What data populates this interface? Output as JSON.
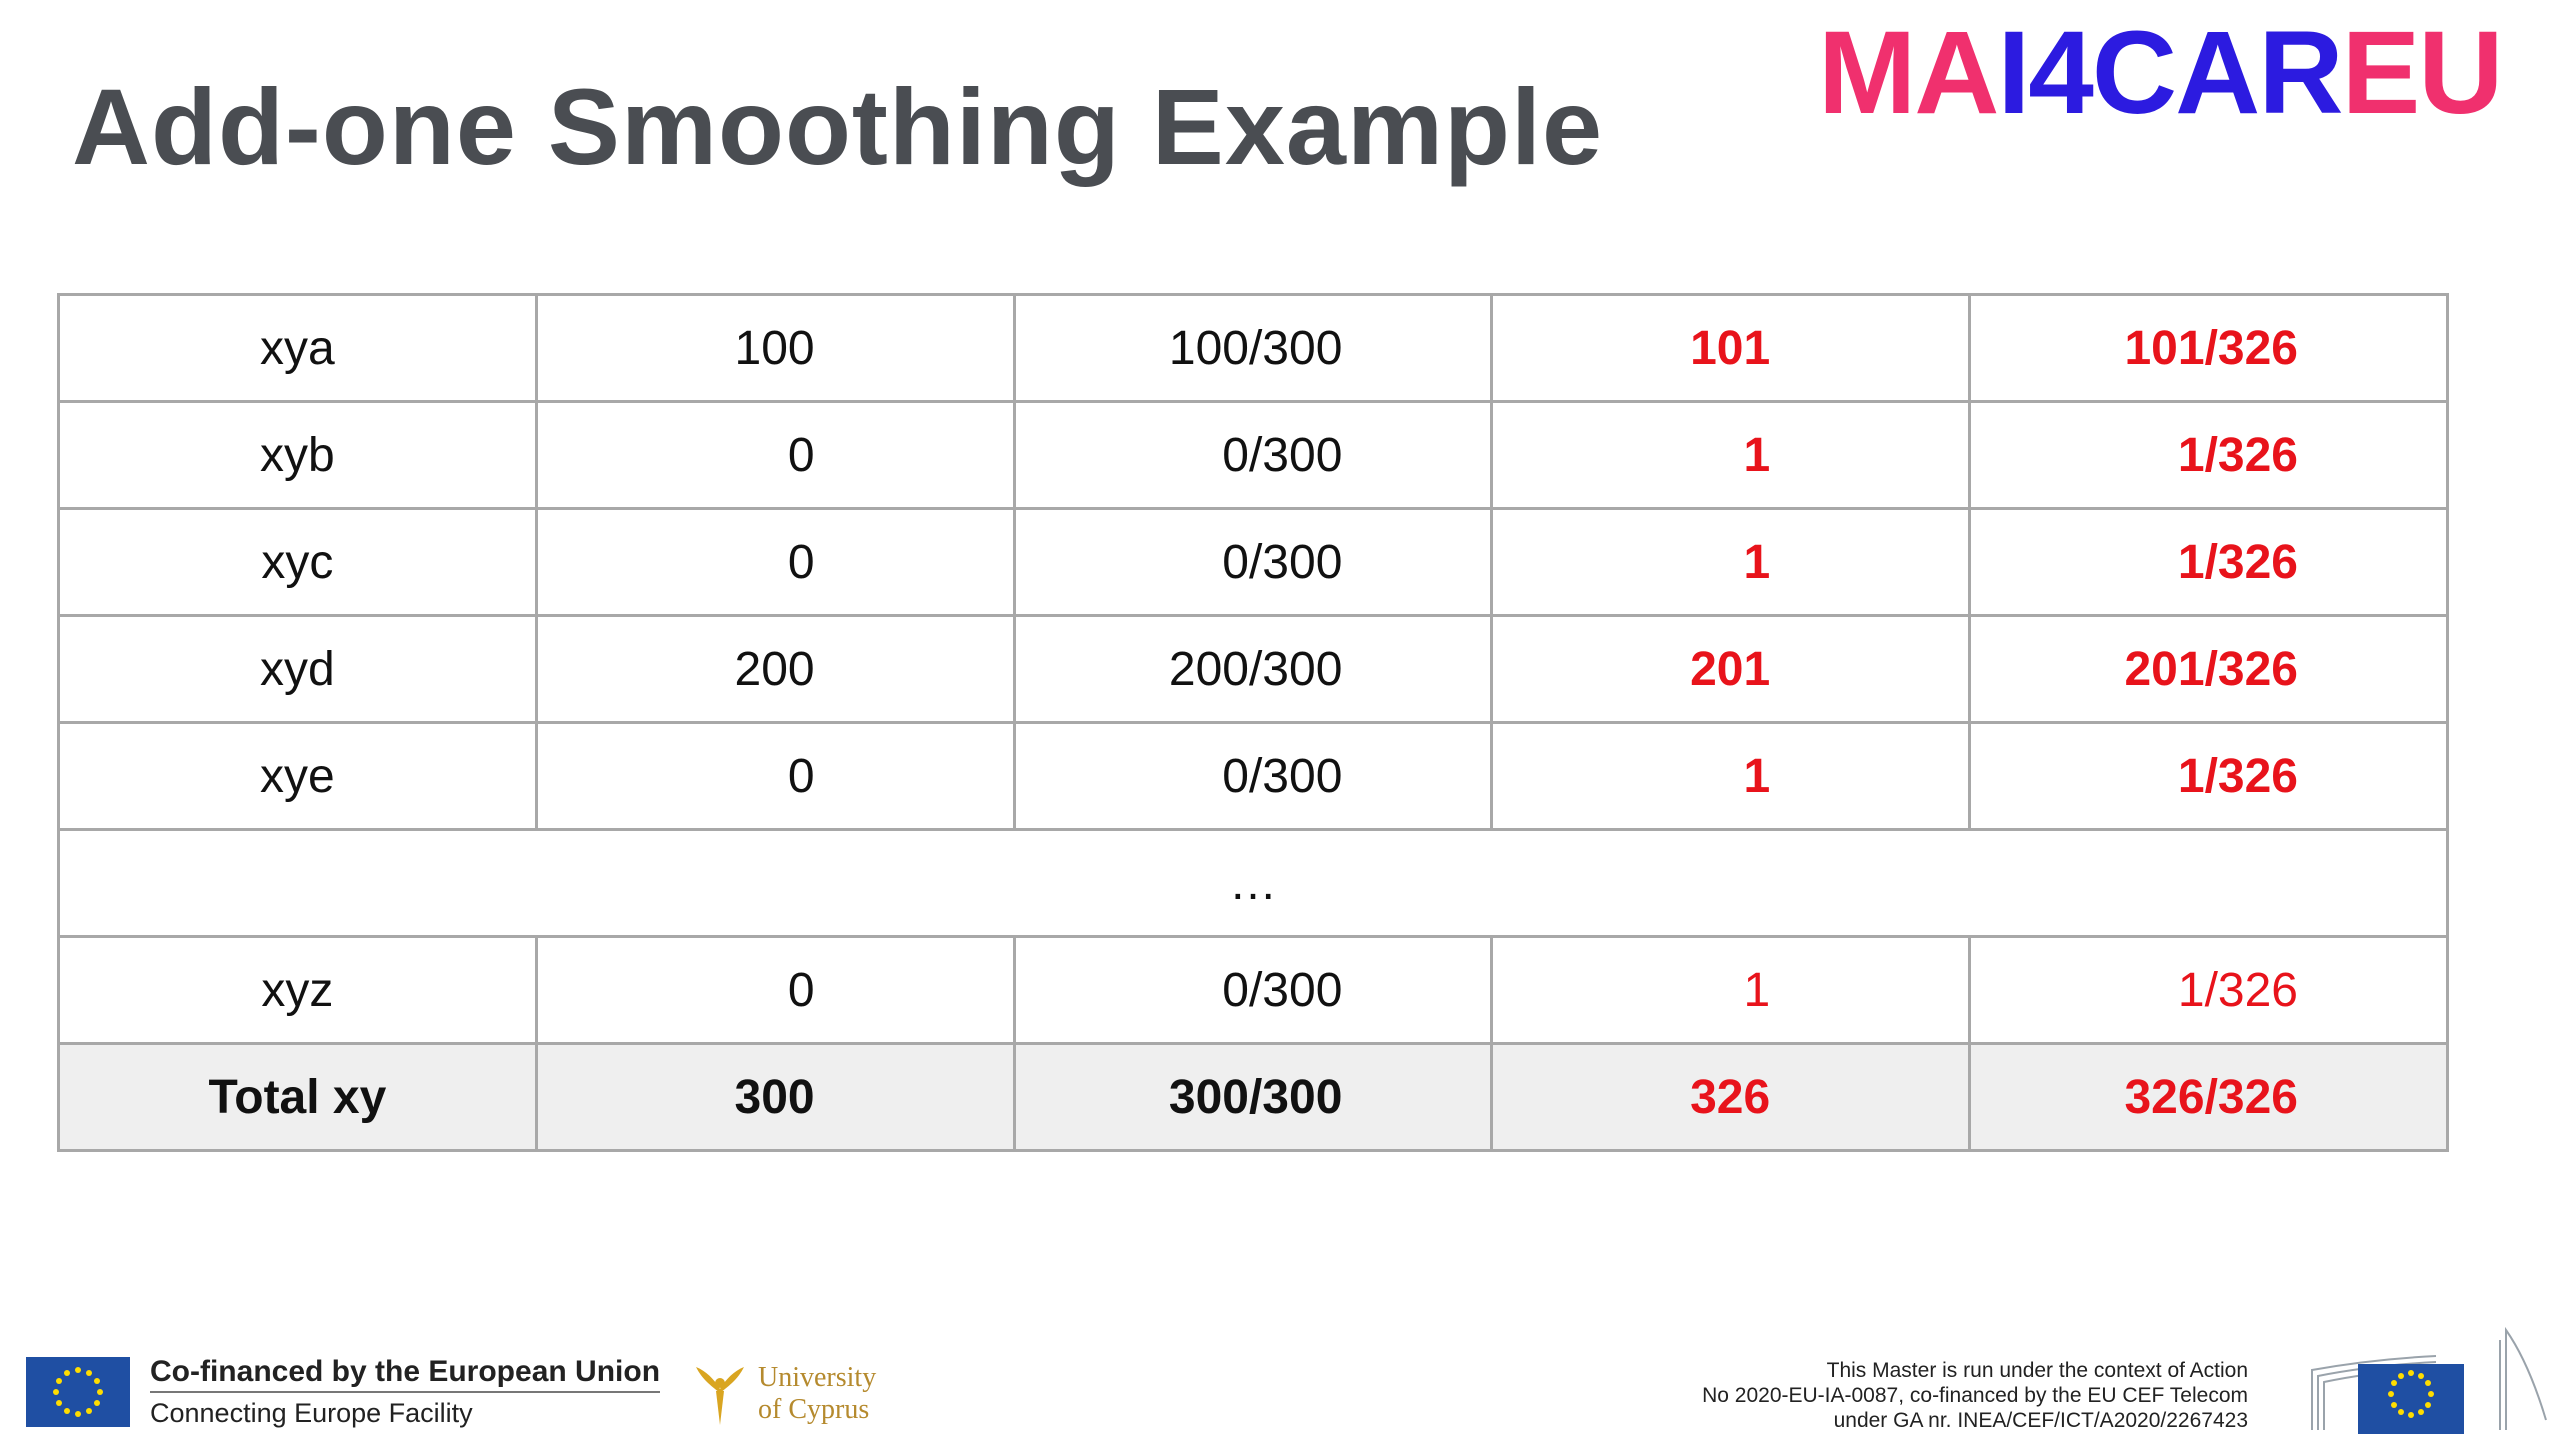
{
  "title": "Add-one Smoothing Example",
  "logo": {
    "part1": "MA",
    "part2": "I4CAR",
    "part3": "EU"
  },
  "table": {
    "rows": [
      {
        "label": "xya",
        "count": "100",
        "prob": "100/300",
        "add_count": "101",
        "add_prob": "101/326",
        "emph": true
      },
      {
        "label": "xyb",
        "count": "0",
        "prob": "0/300",
        "add_count": "1",
        "add_prob": "1/326",
        "emph": true
      },
      {
        "label": "xyc",
        "count": "0",
        "prob": "0/300",
        "add_count": "1",
        "add_prob": "1/326",
        "emph": true
      },
      {
        "label": "xyd",
        "count": "200",
        "prob": "200/300",
        "add_count": "201",
        "add_prob": "201/326",
        "emph": true
      },
      {
        "label": "xye",
        "count": "0",
        "prob": "0/300",
        "add_count": "1",
        "add_prob": "1/326",
        "emph": true
      }
    ],
    "ellipsis": "…",
    "last_row": {
      "label": "xyz",
      "count": "0",
      "prob": "0/300",
      "add_count": "1",
      "add_prob": "1/326"
    },
    "total": {
      "label": "Total xy",
      "count": "300",
      "prob": "300/300",
      "add_count": "326",
      "add_prob": "326/326"
    }
  },
  "footer": {
    "cofinanced": "Co-financed by the European Union",
    "facility": "Connecting Europe Facility",
    "university_line1": "University",
    "university_line2": "of Cyprus",
    "action_line1": "This Master is run under the context of Action",
    "action_line2": "No 2020-EU-IA-0087, co-financed by the EU CEF Telecom",
    "action_line3": "under GA nr. INEA/CEF/ICT/A2020/2267423"
  },
  "colors": {
    "title": "#4a4d52",
    "red": "#e8131b",
    "pink": "#f0306e",
    "blue": "#2c1be0",
    "eu_blue": "#1f4fa3"
  }
}
